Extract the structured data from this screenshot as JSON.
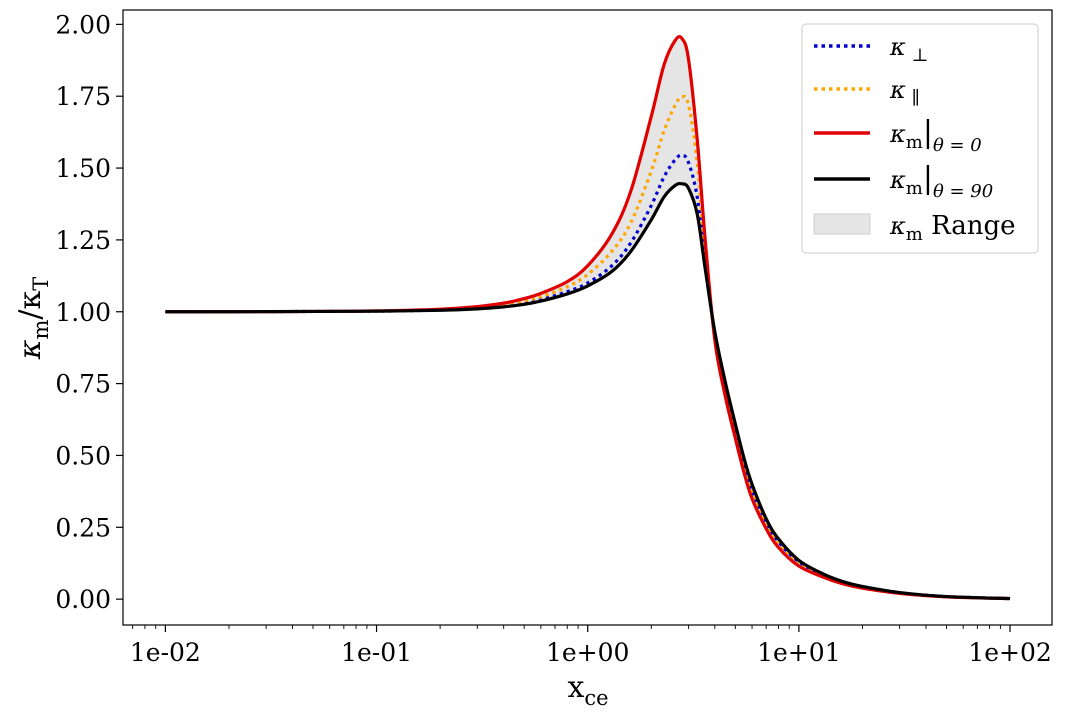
{
  "chart_data": {
    "type": "line",
    "title": "",
    "xlabel": "x",
    "xlabel_sub": "ce",
    "ylabel_main": "κ",
    "ylabel_sub1": "m",
    "ylabel_sep": "/κ",
    "ylabel_sub2": "T",
    "x_scale": "log",
    "xlim": [
      0.0063,
      158
    ],
    "ylim": [
      -0.09,
      2.05
    ],
    "x_ticks": [
      0.01,
      0.1,
      1,
      10,
      100
    ],
    "x_tick_labels": [
      "1e-02",
      "1e-01",
      "1e+00",
      "1e+01",
      "1e+02"
    ],
    "y_ticks": [
      0,
      0.25,
      0.5,
      0.75,
      1.0,
      1.25,
      1.5,
      1.75,
      2.0
    ],
    "y_tick_labels": [
      "0.00",
      "0.25",
      "0.50",
      "0.75",
      "1.00",
      "1.25",
      "1.50",
      "1.75",
      "2.00"
    ],
    "grid": false,
    "legend_position": "top-right",
    "x": [
      0.01,
      0.02,
      0.05,
      0.1,
      0.2,
      0.3,
      0.4,
      0.5,
      0.6,
      0.8,
      1.0,
      1.3,
      1.6,
      2.0,
      2.3,
      2.6,
      2.8,
      3.0,
      3.3,
      3.6,
      4.0,
      4.5,
      5.0,
      5.5,
      6.0,
      7.0,
      8.0,
      10,
      13,
      16,
      20,
      30,
      50,
      100
    ],
    "series": [
      {
        "name": "κ ⊥",
        "name_main": "κ",
        "name_sub": " ⊥",
        "color": "#0000cc",
        "style": "dotted",
        "values": [
          1.0,
          1.0,
          1.001,
          1.002,
          1.006,
          1.012,
          1.02,
          1.03,
          1.042,
          1.07,
          1.1,
          1.16,
          1.24,
          1.37,
          1.47,
          1.53,
          1.545,
          1.52,
          1.4,
          1.17,
          0.92,
          0.73,
          0.59,
          0.47,
          0.38,
          0.27,
          0.2,
          0.13,
          0.085,
          0.06,
          0.042,
          0.022,
          0.009,
          0.002
        ]
      },
      {
        "name": "κ ∥",
        "name_main": "κ",
        "name_sub": " ∥",
        "color": "#ffa500",
        "style": "dotted",
        "values": [
          1.0,
          1.0,
          1.001,
          1.002,
          1.007,
          1.015,
          1.025,
          1.038,
          1.052,
          1.087,
          1.13,
          1.21,
          1.31,
          1.49,
          1.63,
          1.72,
          1.748,
          1.72,
          1.52,
          1.2,
          0.91,
          0.72,
          0.58,
          0.46,
          0.37,
          0.26,
          0.19,
          0.12,
          0.08,
          0.057,
          0.04,
          0.021,
          0.008,
          0.002
        ]
      },
      {
        "name": "κm|θ=0",
        "name_main": "κ",
        "name_sub": "m",
        "name_bar": "|",
        "name_sub2": "θ = 0",
        "color": "#e00000",
        "style": "solid",
        "values": [
          1.0,
          1.0,
          1.001,
          1.003,
          1.009,
          1.018,
          1.03,
          1.046,
          1.064,
          1.105,
          1.16,
          1.27,
          1.42,
          1.68,
          1.86,
          1.945,
          1.95,
          1.88,
          1.6,
          1.25,
          0.9,
          0.7,
          0.56,
          0.44,
          0.35,
          0.245,
          0.18,
          0.115,
          0.077,
          0.054,
          0.038,
          0.02,
          0.008,
          0.002
        ]
      },
      {
        "name": "κm|θ=90",
        "name_main": "κ",
        "name_sub": "m",
        "name_bar": "|",
        "name_sub2": "θ = 90",
        "color": "#000000",
        "style": "solid",
        "values": [
          1.0,
          1.0,
          1.001,
          1.002,
          1.005,
          1.01,
          1.017,
          1.026,
          1.037,
          1.062,
          1.09,
          1.14,
          1.21,
          1.32,
          1.4,
          1.44,
          1.445,
          1.43,
          1.34,
          1.15,
          0.93,
          0.75,
          0.61,
          0.49,
          0.4,
          0.28,
          0.21,
          0.135,
          0.088,
          0.062,
          0.044,
          0.023,
          0.009,
          0.002
        ]
      }
    ],
    "range_band": {
      "name": "κm Range",
      "name_main": "κ",
      "name_sub": "m",
      "name_rest": " Range",
      "color": "#e5e5e5",
      "lower": "κm|θ=90",
      "upper": "κm|θ=0"
    }
  }
}
